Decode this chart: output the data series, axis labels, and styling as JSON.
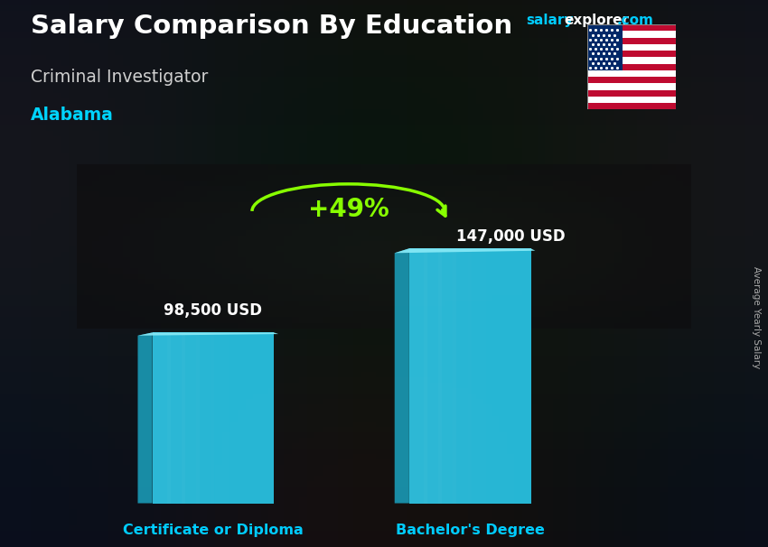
{
  "title_main": "Salary Comparison By Education",
  "title_sub": "Criminal Investigator",
  "title_location": "Alabama",
  "watermark_salary": "salary",
  "watermark_explorer": "explorer",
  "watermark_com": ".com",
  "ylabel_rotated": "Average Yearly Salary",
  "categories": [
    "Certificate or Diploma",
    "Bachelor's Degree"
  ],
  "values": [
    98500,
    147000
  ],
  "value_labels": [
    "98,500 USD",
    "147,000 USD"
  ],
  "pct_change": "+49%",
  "bar_color_main": "#29c5e6",
  "bar_color_light": "#6ddfef",
  "bar_color_dark": "#1a9ab5",
  "bar_color_top": "#85e8f5",
  "bg_dark": "#111418",
  "bg_mid": "#2a2e35",
  "title_color": "#ffffff",
  "sub_title_color": "#d0d0d0",
  "location_color": "#00d4ff",
  "bar_label_color": "#ffffff",
  "pct_color": "#88ff00",
  "arrow_color": "#88ff00",
  "category_label_color": "#00ccff",
  "site_color_salary": "#00ccff",
  "site_color_explorer": "#00ccff",
  "site_color_com": "#00ccff",
  "ylim_max": 180000,
  "bar_width": 0.18
}
